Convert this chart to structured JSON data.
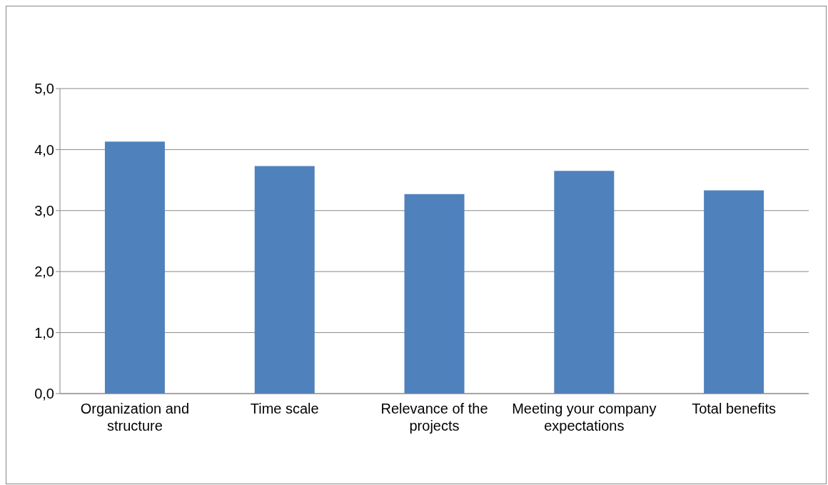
{
  "chart_data": {
    "type": "bar",
    "categories": [
      "Organization and structure",
      "Time scale",
      "Relevance of the projects",
      "Meeting your company expectations",
      "Total benefits"
    ],
    "values": [
      4.13,
      3.73,
      3.27,
      3.65,
      3.33
    ],
    "color": "#4f81bd",
    "ylim": [
      0,
      5
    ],
    "yticks": [
      {
        "value": 0,
        "label": "0,0"
      },
      {
        "value": 1,
        "label": "1,0"
      },
      {
        "value": 2,
        "label": "2,0"
      },
      {
        "value": 3,
        "label": "3,0"
      },
      {
        "value": 4,
        "label": "4,0"
      },
      {
        "value": 5,
        "label": "5,0"
      }
    ],
    "grid": "y"
  }
}
